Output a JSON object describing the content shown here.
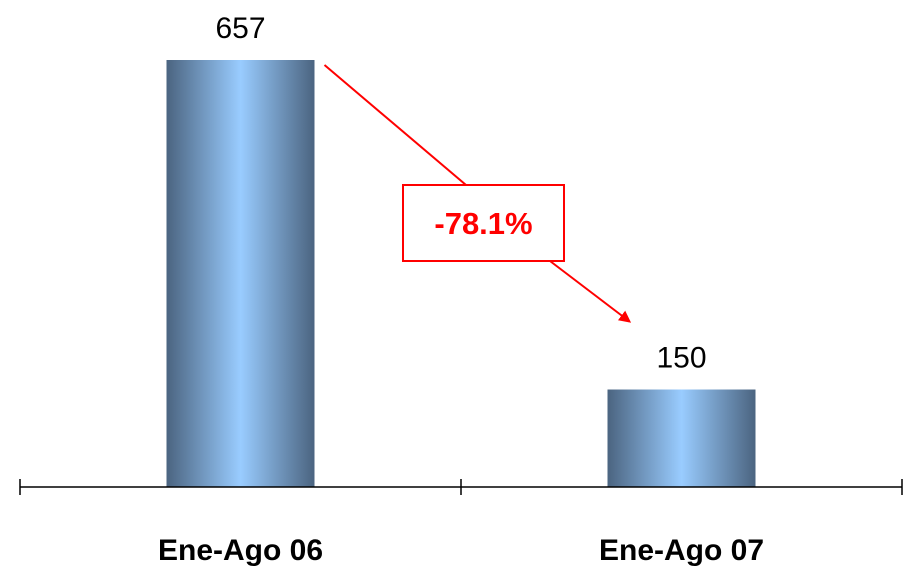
{
  "chart_data": {
    "type": "bar",
    "categories": [
      "Ene-Ago 06",
      "Ene-Ago 07"
    ],
    "values": [
      657,
      150
    ],
    "value_labels": [
      "657",
      "150"
    ],
    "ylim": [
      0,
      657
    ],
    "grid": false,
    "annotation": {
      "text": "-78.1%",
      "from_category": "Ene-Ago 06",
      "to_category": "Ene-Ago 07",
      "color": "#ff0000"
    },
    "colors": {
      "bar_edge": "#4b6480",
      "bar_center": "#99ccff",
      "axis": "#000000"
    }
  }
}
